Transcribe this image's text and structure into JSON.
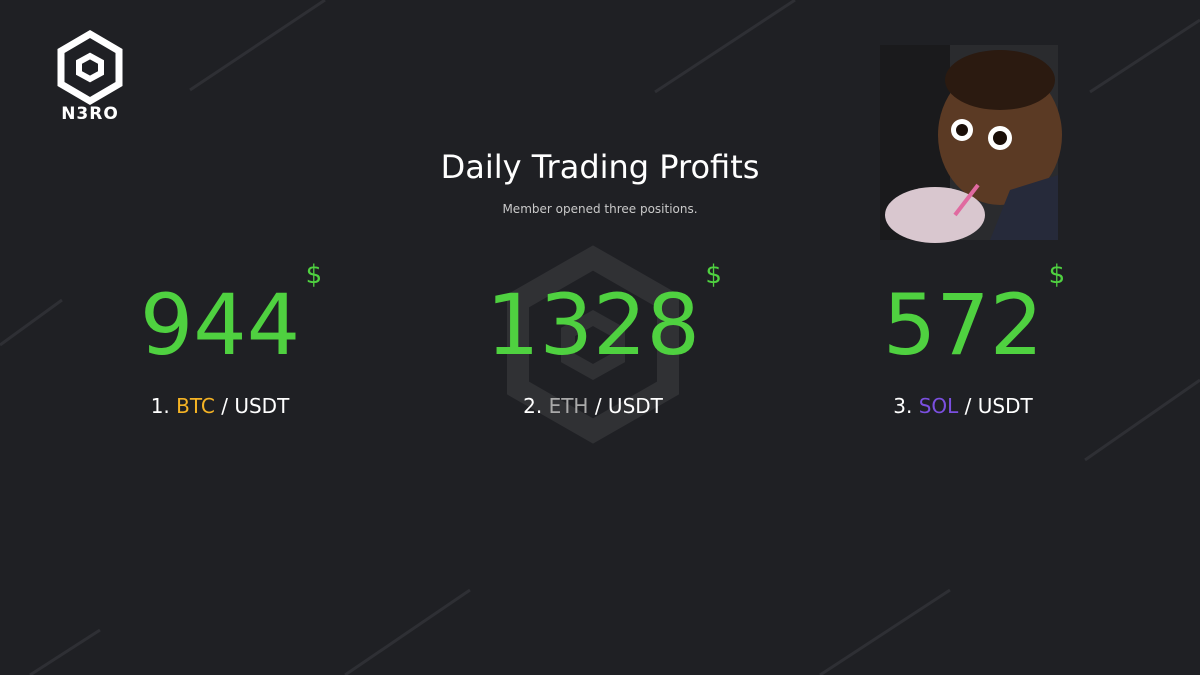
{
  "logo": {
    "text": "N3RO"
  },
  "header": {
    "title": "Daily Trading Profits",
    "subtitle": "Member opened three positions."
  },
  "positions": [
    {
      "profit": 944,
      "currency": "$",
      "rank": "1.",
      "asset": "BTC",
      "asset_color": "#f5b324",
      "quote": "/ USDT"
    },
    {
      "profit": 1328,
      "currency": "$",
      "rank": "2.",
      "asset": "ETH",
      "asset_color": "#a9a9a9",
      "quote": "/ USDT"
    },
    {
      "profit": 572,
      "currency": "$",
      "rank": "3.",
      "asset": "SOL",
      "asset_color": "#7b4fe0",
      "quote": "/ USDT"
    }
  ]
}
